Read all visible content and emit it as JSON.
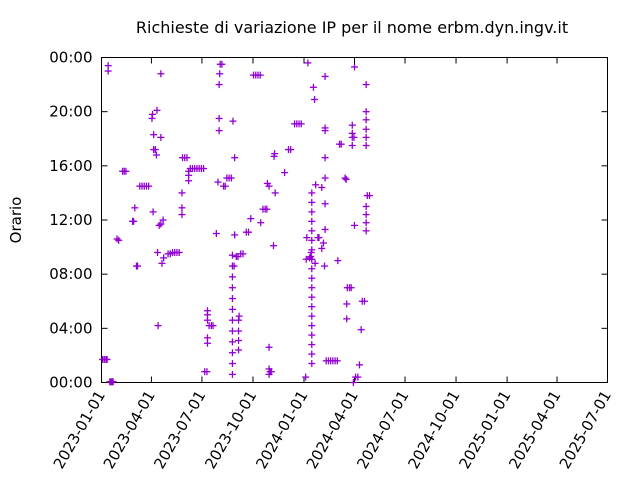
{
  "chart_data": {
    "type": "scatter",
    "title": "Richieste di variazione IP per il nome erbm.dyn.ingv.it",
    "xlabel": "",
    "ylabel": "Orario",
    "x_ticks": [
      "2023-01-01",
      "2023-04-01",
      "2023-07-01",
      "2023-10-01",
      "2024-01-01",
      "2024-04-01",
      "2024-07-01",
      "2024-10-01",
      "2025-01-01",
      "2025-04-01",
      "2025-07-01"
    ],
    "y_ticks": [
      "00:00",
      "04:00",
      "08:00",
      "12:00",
      "16:00",
      "20:00",
      "00:00"
    ],
    "xlim": [
      "2023-01-01",
      "2025-07-01"
    ],
    "ylim_hours": [
      0,
      24
    ],
    "grid": false,
    "legend": "none",
    "marker": "+",
    "color": "#9400d3",
    "points": [
      {
        "x": "2023-01-03",
        "h": 1.7
      },
      {
        "x": "2023-01-06",
        "h": 1.7
      },
      {
        "x": "2023-01-09",
        "h": 1.7
      },
      {
        "x": "2023-01-11",
        "h": 1.7
      },
      {
        "x": "2023-01-13",
        "h": 23.0
      },
      {
        "x": "2023-01-13",
        "h": 23.4
      },
      {
        "x": "2023-01-16",
        "h": 0.05
      },
      {
        "x": "2023-01-18",
        "h": 0.05
      },
      {
        "x": "2023-01-20",
        "h": 0.05
      },
      {
        "x": "2023-01-22",
        "h": 0.05
      },
      {
        "x": "2023-01-29",
        "h": 10.6
      },
      {
        "x": "2023-02-01",
        "h": 10.5
      },
      {
        "x": "2023-02-08",
        "h": 15.6
      },
      {
        "x": "2023-02-11",
        "h": 15.6
      },
      {
        "x": "2023-02-14",
        "h": 15.6
      },
      {
        "x": "2023-02-26",
        "h": 11.9
      },
      {
        "x": "2023-02-28",
        "h": 11.9
      },
      {
        "x": "2023-03-02",
        "h": 12.9
      },
      {
        "x": "2023-03-05",
        "h": 8.6
      },
      {
        "x": "2023-03-07",
        "h": 8.6
      },
      {
        "x": "2023-03-11",
        "h": 14.5
      },
      {
        "x": "2023-03-15",
        "h": 14.5
      },
      {
        "x": "2023-03-19",
        "h": 14.5
      },
      {
        "x": "2023-03-23",
        "h": 14.5
      },
      {
        "x": "2023-03-27",
        "h": 14.5
      },
      {
        "x": "2023-04-02",
        "h": 19.5
      },
      {
        "x": "2023-04-03",
        "h": 19.8
      },
      {
        "x": "2023-04-05",
        "h": 18.3
      },
      {
        "x": "2023-04-05",
        "h": 17.2
      },
      {
        "x": "2023-04-08",
        "h": 17.2
      },
      {
        "x": "2023-04-10",
        "h": 16.8
      },
      {
        "x": "2023-04-04",
        "h": 12.6
      },
      {
        "x": "2023-04-11",
        "h": 20.1
      },
      {
        "x": "2023-04-12",
        "h": 9.6
      },
      {
        "x": "2023-04-13",
        "h": 4.2
      },
      {
        "x": "2023-04-15",
        "h": 11.6
      },
      {
        "x": "2023-04-18",
        "h": 11.7
      },
      {
        "x": "2023-04-22",
        "h": 12.0
      },
      {
        "x": "2023-04-18",
        "h": 18.1
      },
      {
        "x": "2023-04-18",
        "h": 22.8
      },
      {
        "x": "2023-04-20",
        "h": 8.8
      },
      {
        "x": "2023-04-23",
        "h": 9.2
      },
      {
        "x": "2023-05-01",
        "h": 9.5
      },
      {
        "x": "2023-05-05",
        "h": 9.5
      },
      {
        "x": "2023-05-09",
        "h": 9.6
      },
      {
        "x": "2023-05-13",
        "h": 9.6
      },
      {
        "x": "2023-05-17",
        "h": 9.6
      },
      {
        "x": "2023-05-21",
        "h": 9.6
      },
      {
        "x": "2023-05-26",
        "h": 12.4
      },
      {
        "x": "2023-05-26",
        "h": 12.9
      },
      {
        "x": "2023-05-26",
        "h": 14.0
      },
      {
        "x": "2023-05-27",
        "h": 16.6
      },
      {
        "x": "2023-05-31",
        "h": 16.6
      },
      {
        "x": "2023-06-04",
        "h": 16.6
      },
      {
        "x": "2023-06-07",
        "h": 14.9
      },
      {
        "x": "2023-06-07",
        "h": 15.3
      },
      {
        "x": "2023-06-07",
        "h": 15.6
      },
      {
        "x": "2023-06-10",
        "h": 15.8
      },
      {
        "x": "2023-06-14",
        "h": 15.8
      },
      {
        "x": "2023-06-18",
        "h": 15.8
      },
      {
        "x": "2023-06-22",
        "h": 15.8
      },
      {
        "x": "2023-06-26",
        "h": 15.8
      },
      {
        "x": "2023-06-30",
        "h": 15.8
      },
      {
        "x": "2023-07-04",
        "h": 15.8
      },
      {
        "x": "2023-07-06",
        "h": 0.8
      },
      {
        "x": "2023-07-10",
        "h": 0.8
      },
      {
        "x": "2023-07-11",
        "h": 2.9
      },
      {
        "x": "2023-07-11",
        "h": 3.3
      },
      {
        "x": "2023-07-11",
        "h": 4.6
      },
      {
        "x": "2023-07-11",
        "h": 5.0
      },
      {
        "x": "2023-07-11",
        "h": 5.3
      },
      {
        "x": "2023-07-14",
        "h": 4.2
      },
      {
        "x": "2023-07-18",
        "h": 4.2
      },
      {
        "x": "2023-07-21",
        "h": 4.2
      },
      {
        "x": "2023-07-27",
        "h": 11.0
      },
      {
        "x": "2023-07-30",
        "h": 14.8
      },
      {
        "x": "2023-08-01",
        "h": 18.6
      },
      {
        "x": "2023-08-01",
        "h": 19.5
      },
      {
        "x": "2023-08-01",
        "h": 22.0
      },
      {
        "x": "2023-08-02",
        "h": 22.8
      },
      {
        "x": "2023-08-03",
        "h": 23.5
      },
      {
        "x": "2023-08-06",
        "h": 23.5
      },
      {
        "x": "2023-08-09",
        "h": 14.5
      },
      {
        "x": "2023-08-12",
        "h": 14.5
      },
      {
        "x": "2023-08-15",
        "h": 15.1
      },
      {
        "x": "2023-08-19",
        "h": 15.1
      },
      {
        "x": "2023-08-23",
        "h": 15.1
      },
      {
        "x": "2023-08-26",
        "h": 19.3
      },
      {
        "x": "2023-08-29",
        "h": 16.6
      },
      {
        "x": "2023-08-25",
        "h": 0.6
      },
      {
        "x": "2023-08-25",
        "h": 1.4
      },
      {
        "x": "2023-08-25",
        "h": 2.2
      },
      {
        "x": "2023-08-25",
        "h": 3.0
      },
      {
        "x": "2023-08-25",
        "h": 3.8
      },
      {
        "x": "2023-08-25",
        "h": 4.6
      },
      {
        "x": "2023-08-25",
        "h": 5.4
      },
      {
        "x": "2023-08-25",
        "h": 6.2
      },
      {
        "x": "2023-08-25",
        "h": 7.0
      },
      {
        "x": "2023-08-25",
        "h": 7.8
      },
      {
        "x": "2023-08-25",
        "h": 8.6
      },
      {
        "x": "2023-08-25",
        "h": 9.4
      },
      {
        "x": "2023-08-28",
        "h": 8.6
      },
      {
        "x": "2023-08-29",
        "h": 10.9
      },
      {
        "x": "2023-09-01",
        "h": 9.3
      },
      {
        "x": "2023-09-04",
        "h": 9.3
      },
      {
        "x": "2023-09-05",
        "h": 2.4
      },
      {
        "x": "2023-09-05",
        "h": 3.1
      },
      {
        "x": "2023-09-05",
        "h": 3.8
      },
      {
        "x": "2023-09-05",
        "h": 4.6
      },
      {
        "x": "2023-09-06",
        "h": 4.9
      },
      {
        "x": "2023-09-09",
        "h": 9.5
      },
      {
        "x": "2023-09-13",
        "h": 9.5
      },
      {
        "x": "2023-09-19",
        "h": 11.1
      },
      {
        "x": "2023-09-23",
        "h": 11.1
      },
      {
        "x": "2023-09-27",
        "h": 12.1
      },
      {
        "x": "2023-10-02",
        "h": 22.7
      },
      {
        "x": "2023-10-06",
        "h": 22.7
      },
      {
        "x": "2023-10-10",
        "h": 22.7
      },
      {
        "x": "2023-10-14",
        "h": 22.7
      },
      {
        "x": "2023-10-15",
        "h": 11.8
      },
      {
        "x": "2023-10-19",
        "h": 12.8
      },
      {
        "x": "2023-10-23",
        "h": 12.8
      },
      {
        "x": "2023-10-26",
        "h": 12.8
      },
      {
        "x": "2023-10-27",
        "h": 14.7
      },
      {
        "x": "2023-10-30",
        "h": 14.5
      },
      {
        "x": "2023-10-30",
        "h": 0.6
      },
      {
        "x": "2023-10-30",
        "h": 1.0
      },
      {
        "x": "2023-10-30",
        "h": 2.6
      },
      {
        "x": "2023-11-01",
        "h": 0.8
      },
      {
        "x": "2023-11-03",
        "h": 0.8
      },
      {
        "x": "2023-11-07",
        "h": 10.1
      },
      {
        "x": "2023-11-08",
        "h": 16.7
      },
      {
        "x": "2023-11-09",
        "h": 16.9
      },
      {
        "x": "2023-11-10",
        "h": 14.0
      },
      {
        "x": "2023-11-27",
        "h": 15.5
      },
      {
        "x": "2023-12-04",
        "h": 17.2
      },
      {
        "x": "2023-12-08",
        "h": 17.2
      },
      {
        "x": "2023-12-15",
        "h": 19.1
      },
      {
        "x": "2023-12-19",
        "h": 19.1
      },
      {
        "x": "2023-12-23",
        "h": 19.1
      },
      {
        "x": "2023-12-27",
        "h": 19.1
      },
      {
        "x": "2024-01-04",
        "h": 0.4
      },
      {
        "x": "2024-01-08",
        "h": 23.6
      },
      {
        "x": "2024-01-05",
        "h": 9.1
      },
      {
        "x": "2024-01-06",
        "h": 10.7
      },
      {
        "x": "2024-01-11",
        "h": 9.2
      },
      {
        "x": "2024-01-13",
        "h": 9.3
      },
      {
        "x": "2024-01-14",
        "h": 9.6
      },
      {
        "x": "2024-01-15",
        "h": 1.4
      },
      {
        "x": "2024-01-15",
        "h": 2.1
      },
      {
        "x": "2024-01-15",
        "h": 2.8
      },
      {
        "x": "2024-01-15",
        "h": 3.5
      },
      {
        "x": "2024-01-15",
        "h": 4.2
      },
      {
        "x": "2024-01-15",
        "h": 4.9
      },
      {
        "x": "2024-01-15",
        "h": 5.6
      },
      {
        "x": "2024-01-15",
        "h": 6.3
      },
      {
        "x": "2024-01-15",
        "h": 7.0
      },
      {
        "x": "2024-01-15",
        "h": 7.7
      },
      {
        "x": "2024-01-15",
        "h": 8.4
      },
      {
        "x": "2024-01-15",
        "h": 9.1
      },
      {
        "x": "2024-01-15",
        "h": 9.8
      },
      {
        "x": "2024-01-15",
        "h": 10.5
      },
      {
        "x": "2024-01-15",
        "h": 11.2
      },
      {
        "x": "2024-01-15",
        "h": 11.9
      },
      {
        "x": "2024-01-15",
        "h": 12.6
      },
      {
        "x": "2024-01-15",
        "h": 13.3
      },
      {
        "x": "2024-01-15",
        "h": 14.0
      },
      {
        "x": "2024-01-18",
        "h": 21.8
      },
      {
        "x": "2024-01-20",
        "h": 20.9
      },
      {
        "x": "2024-01-21",
        "h": 8.8
      },
      {
        "x": "2024-01-22",
        "h": 14.6
      },
      {
        "x": "2024-01-26",
        "h": 10.7
      },
      {
        "x": "2024-01-28",
        "h": 10.7
      },
      {
        "x": "2024-02-02",
        "h": 14.4
      },
      {
        "x": "2024-02-02",
        "h": 9.9
      },
      {
        "x": "2024-02-05",
        "h": 10.3
      },
      {
        "x": "2024-02-07",
        "h": 8.6
      },
      {
        "x": "2024-02-08",
        "h": 11.3
      },
      {
        "x": "2024-02-08",
        "h": 13.2
      },
      {
        "x": "2024-02-08",
        "h": 15.1
      },
      {
        "x": "2024-02-08",
        "h": 16.6
      },
      {
        "x": "2024-02-08",
        "h": 18.6
      },
      {
        "x": "2024-02-08",
        "h": 18.8
      },
      {
        "x": "2024-02-08",
        "h": 22.6
      },
      {
        "x": "2024-02-10",
        "h": 1.6
      },
      {
        "x": "2024-02-14",
        "h": 1.6
      },
      {
        "x": "2024-02-18",
        "h": 1.6
      },
      {
        "x": "2024-02-22",
        "h": 1.6
      },
      {
        "x": "2024-02-26",
        "h": 1.6
      },
      {
        "x": "2024-03-01",
        "h": 1.6
      },
      {
        "x": "2024-03-02",
        "h": 9.0
      },
      {
        "x": "2024-03-05",
        "h": 17.6
      },
      {
        "x": "2024-03-08",
        "h": 17.6
      },
      {
        "x": "2024-03-15",
        "h": 15.1
      },
      {
        "x": "2024-03-17",
        "h": 15.0
      },
      {
        "x": "2024-03-18",
        "h": 4.7
      },
      {
        "x": "2024-03-18",
        "h": 5.8
      },
      {
        "x": "2024-03-19",
        "h": 7.0
      },
      {
        "x": "2024-03-23",
        "h": 7.0
      },
      {
        "x": "2024-03-26",
        "h": 7.0
      },
      {
        "x": "2024-03-28",
        "h": 17.5
      },
      {
        "x": "2024-03-28",
        "h": 18.1
      },
      {
        "x": "2024-03-28",
        "h": 18.4
      },
      {
        "x": "2024-03-28",
        "h": 19.0
      },
      {
        "x": "2024-03-31",
        "h": 18.1
      },
      {
        "x": "2024-04-01",
        "h": 11.6
      },
      {
        "x": "2024-04-01",
        "h": 23.3
      },
      {
        "x": "2024-03-30",
        "h": 0.0
      },
      {
        "x": "2024-04-03",
        "h": 0.4
      },
      {
        "x": "2024-04-07",
        "h": 0.4
      },
      {
        "x": "2024-04-10",
        "h": 1.3
      },
      {
        "x": "2024-04-13",
        "h": 3.9
      },
      {
        "x": "2024-04-15",
        "h": 6.0
      },
      {
        "x": "2024-04-19",
        "h": 6.0
      },
      {
        "x": "2024-04-22",
        "h": 17.5
      },
      {
        "x": "2024-04-22",
        "h": 18.1
      },
      {
        "x": "2024-04-22",
        "h": 18.7
      },
      {
        "x": "2024-04-22",
        "h": 19.4
      },
      {
        "x": "2024-04-22",
        "h": 20.0
      },
      {
        "x": "2024-04-22",
        "h": 11.2
      },
      {
        "x": "2024-04-22",
        "h": 11.8
      },
      {
        "x": "2024-04-22",
        "h": 12.4
      },
      {
        "x": "2024-04-22",
        "h": 13.0
      },
      {
        "x": "2024-04-22",
        "h": 22.0
      },
      {
        "x": "2024-04-24",
        "h": 13.8
      },
      {
        "x": "2024-04-28",
        "h": 13.8
      }
    ]
  }
}
